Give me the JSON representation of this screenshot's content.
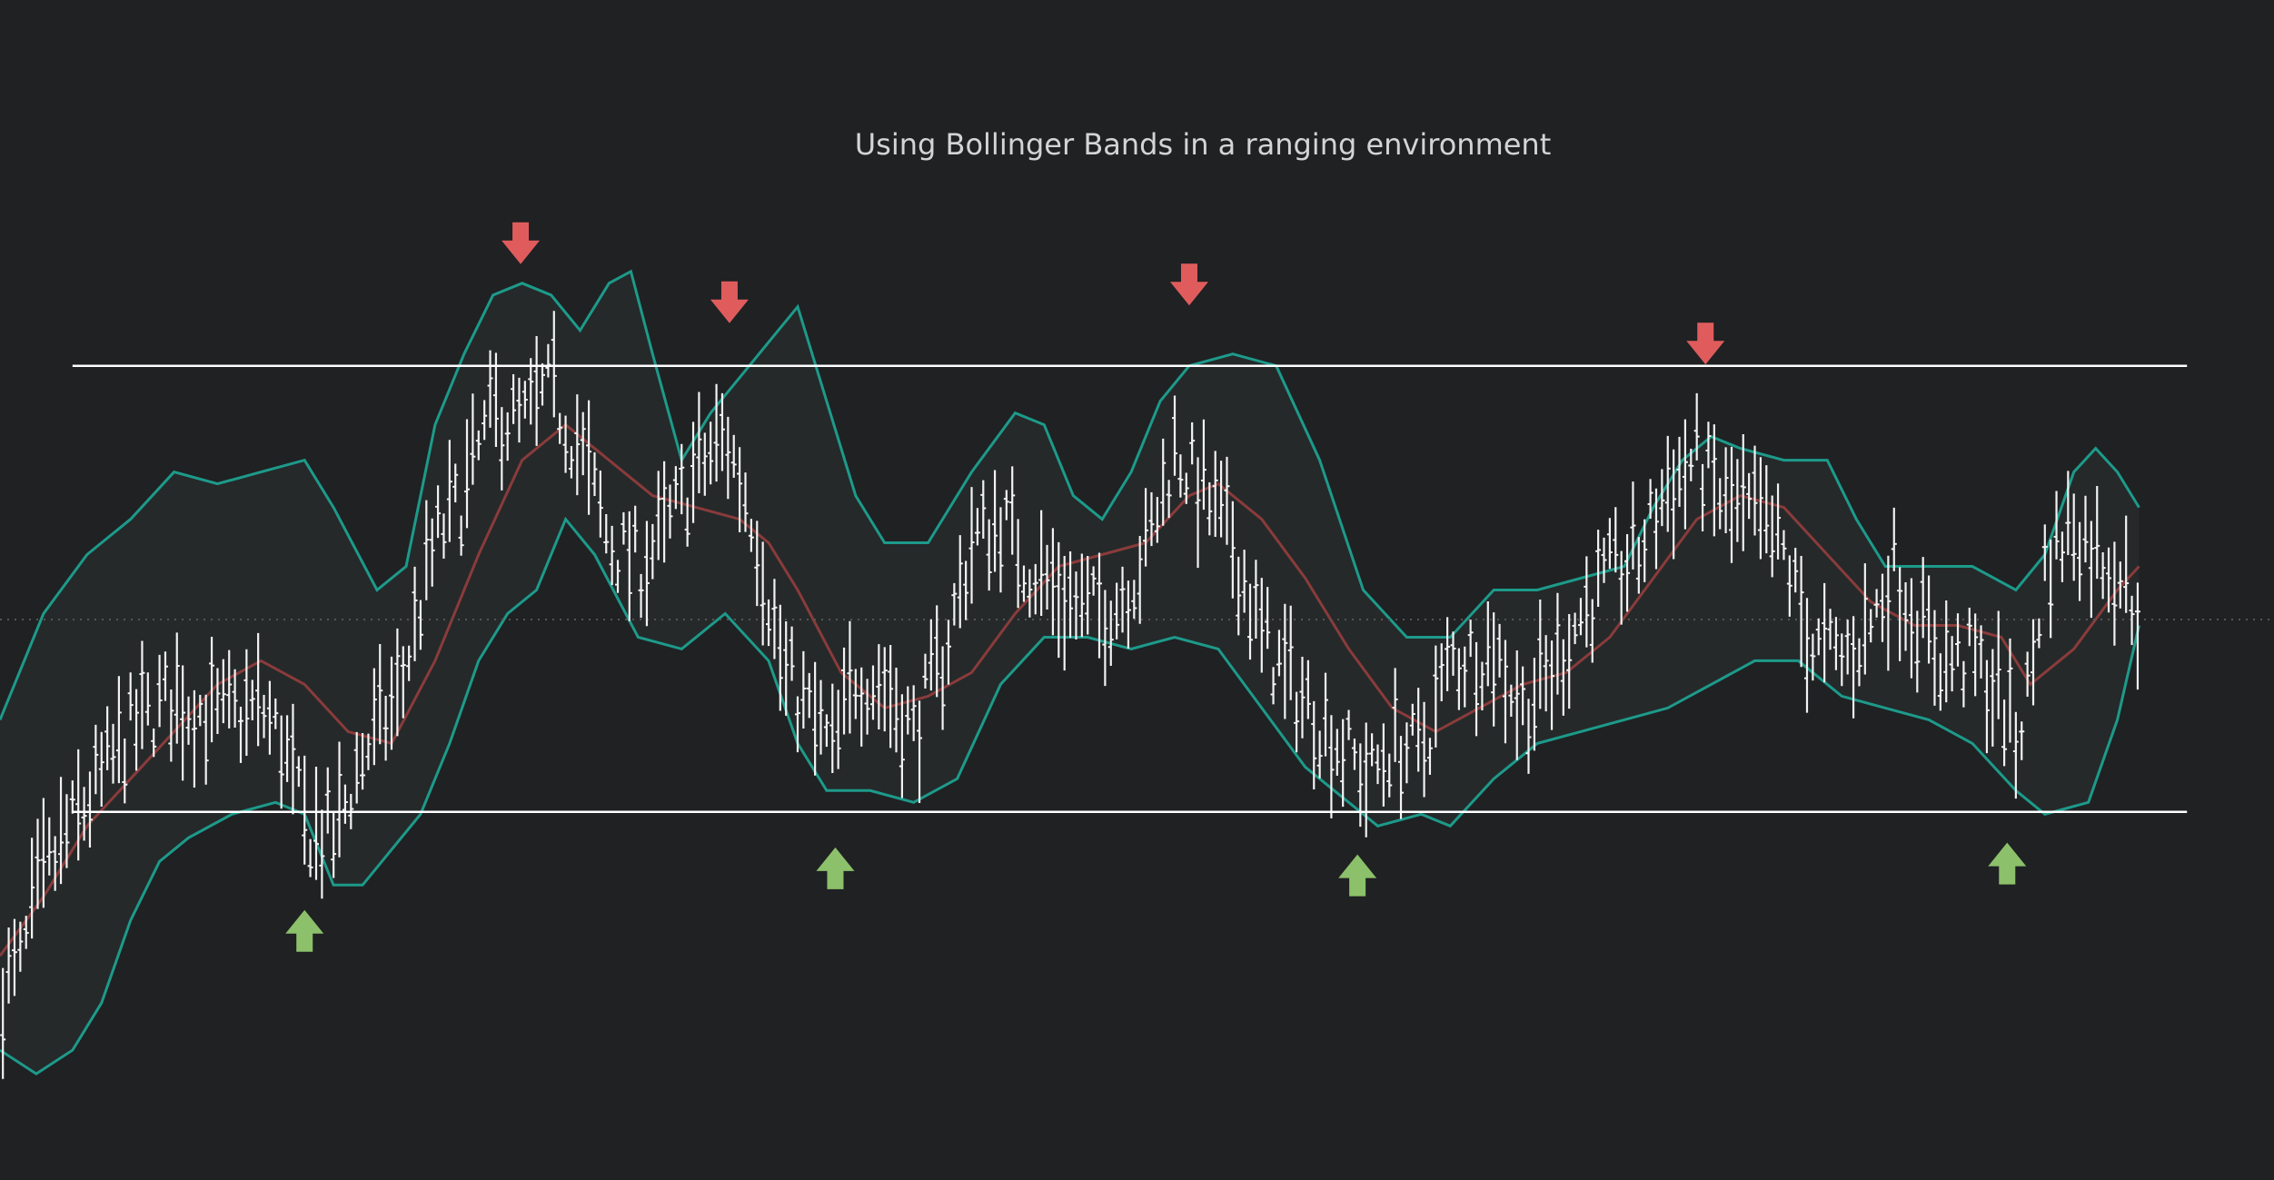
{
  "chart_data": {
    "type": "bar",
    "title": "Using Bollinger Bands in a ranging environment",
    "xlabel": "",
    "ylabel": "",
    "grid": false,
    "legend": "none",
    "xlim": [
      0,
      1568
    ],
    "ylim": [
      0,
      1000
    ],
    "range_levels": {
      "resistance": 690,
      "support": 312,
      "reference": 475
    },
    "range_span": [
      50,
      1508
    ],
    "price_path": [
      [
        0,
        160
      ],
      [
        15,
        180
      ],
      [
        25,
        240
      ],
      [
        45,
        290
      ],
      [
        60,
        320
      ],
      [
        90,
        380
      ],
      [
        120,
        410
      ],
      [
        150,
        390
      ],
      [
        180,
        400
      ],
      [
        195,
        370
      ],
      [
        210,
        300
      ],
      [
        230,
        290
      ],
      [
        250,
        360
      ],
      [
        275,
        410
      ],
      [
        300,
        540
      ],
      [
        320,
        580
      ],
      [
        340,
        650
      ],
      [
        360,
        640
      ],
      [
        380,
        670
      ],
      [
        400,
        620
      ],
      [
        420,
        540
      ],
      [
        440,
        520
      ],
      [
        460,
        550
      ],
      [
        480,
        600
      ],
      [
        500,
        630
      ],
      [
        520,
        560
      ],
      [
        540,
        430
      ],
      [
        560,
        390
      ],
      [
        575,
        360
      ],
      [
        590,
        430
      ],
      [
        610,
        420
      ],
      [
        630,
        380
      ],
      [
        650,
        440
      ],
      [
        670,
        540
      ],
      [
        690,
        560
      ],
      [
        710,
        520
      ],
      [
        730,
        500
      ],
      [
        750,
        480
      ],
      [
        770,
        490
      ],
      [
        790,
        530
      ],
      [
        810,
        620
      ],
      [
        830,
        580
      ],
      [
        850,
        540
      ],
      [
        870,
        460
      ],
      [
        890,
        420
      ],
      [
        910,
        390
      ],
      [
        930,
        360
      ],
      [
        945,
        340
      ],
      [
        960,
        370
      ],
      [
        980,
        360
      ],
      [
        1000,
        440
      ],
      [
        1030,
        450
      ],
      [
        1050,
        400
      ],
      [
        1070,
        430
      ],
      [
        1090,
        480
      ],
      [
        1110,
        510
      ],
      [
        1130,
        530
      ],
      [
        1150,
        590
      ],
      [
        1170,
        610
      ],
      [
        1190,
        570
      ],
      [
        1210,
        560
      ],
      [
        1230,
        530
      ],
      [
        1250,
        450
      ],
      [
        1270,
        440
      ],
      [
        1290,
        470
      ],
      [
        1305,
        520
      ],
      [
        1320,
        480
      ],
      [
        1340,
        440
      ],
      [
        1360,
        440
      ],
      [
        1380,
        410
      ],
      [
        1390,
        370
      ],
      [
        1400,
        420
      ],
      [
        1410,
        520
      ],
      [
        1430,
        560
      ],
      [
        1440,
        540
      ],
      [
        1460,
        520
      ],
      [
        1475,
        480
      ]
    ],
    "middle_band": [
      [
        0,
        190
      ],
      [
        30,
        240
      ],
      [
        60,
        300
      ],
      [
        90,
        340
      ],
      [
        120,
        380
      ],
      [
        150,
        420
      ],
      [
        180,
        440
      ],
      [
        210,
        420
      ],
      [
        240,
        380
      ],
      [
        270,
        370
      ],
      [
        300,
        440
      ],
      [
        330,
        530
      ],
      [
        360,
        610
      ],
      [
        390,
        640
      ],
      [
        420,
        610
      ],
      [
        450,
        580
      ],
      [
        480,
        570
      ],
      [
        510,
        560
      ],
      [
        530,
        540
      ],
      [
        550,
        500
      ],
      [
        580,
        430
      ],
      [
        610,
        400
      ],
      [
        640,
        410
      ],
      [
        670,
        430
      ],
      [
        700,
        480
      ],
      [
        730,
        520
      ],
      [
        760,
        530
      ],
      [
        790,
        540
      ],
      [
        820,
        580
      ],
      [
        840,
        590
      ],
      [
        870,
        560
      ],
      [
        900,
        510
      ],
      [
        930,
        450
      ],
      [
        960,
        400
      ],
      [
        990,
        380
      ],
      [
        1020,
        400
      ],
      [
        1050,
        420
      ],
      [
        1080,
        430
      ],
      [
        1110,
        460
      ],
      [
        1140,
        510
      ],
      [
        1170,
        560
      ],
      [
        1200,
        580
      ],
      [
        1230,
        570
      ],
      [
        1260,
        530
      ],
      [
        1290,
        490
      ],
      [
        1320,
        470
      ],
      [
        1350,
        470
      ],
      [
        1380,
        460
      ],
      [
        1400,
        420
      ],
      [
        1430,
        450
      ],
      [
        1460,
        500
      ],
      [
        1475,
        520
      ]
    ],
    "upper_band": [
      [
        0,
        390
      ],
      [
        30,
        480
      ],
      [
        60,
        530
      ],
      [
        90,
        560
      ],
      [
        120,
        600
      ],
      [
        150,
        590
      ],
      [
        180,
        600
      ],
      [
        210,
        610
      ],
      [
        230,
        570
      ],
      [
        260,
        500
      ],
      [
        280,
        520
      ],
      [
        300,
        640
      ],
      [
        320,
        700
      ],
      [
        340,
        750
      ],
      [
        360,
        760
      ],
      [
        380,
        750
      ],
      [
        400,
        720
      ],
      [
        420,
        760
      ],
      [
        435,
        770
      ],
      [
        450,
        700
      ],
      [
        470,
        610
      ],
      [
        490,
        650
      ],
      [
        510,
        680
      ],
      [
        530,
        710
      ],
      [
        550,
        740
      ],
      [
        570,
        660
      ],
      [
        590,
        580
      ],
      [
        610,
        540
      ],
      [
        640,
        540
      ],
      [
        670,
        600
      ],
      [
        700,
        650
      ],
      [
        720,
        640
      ],
      [
        740,
        580
      ],
      [
        760,
        560
      ],
      [
        780,
        600
      ],
      [
        800,
        660
      ],
      [
        820,
        690
      ],
      [
        850,
        700
      ],
      [
        880,
        690
      ],
      [
        910,
        610
      ],
      [
        940,
        500
      ],
      [
        970,
        460
      ],
      [
        1000,
        460
      ],
      [
        1030,
        500
      ],
      [
        1060,
        500
      ],
      [
        1090,
        510
      ],
      [
        1120,
        520
      ],
      [
        1140,
        570
      ],
      [
        1160,
        610
      ],
      [
        1180,
        630
      ],
      [
        1200,
        620
      ],
      [
        1230,
        610
      ],
      [
        1260,
        610
      ],
      [
        1280,
        560
      ],
      [
        1300,
        520
      ],
      [
        1330,
        520
      ],
      [
        1360,
        520
      ],
      [
        1390,
        500
      ],
      [
        1410,
        530
      ],
      [
        1430,
        600
      ],
      [
        1445,
        620
      ],
      [
        1460,
        600
      ],
      [
        1475,
        570
      ]
    ],
    "lower_band": [
      [
        0,
        110
      ],
      [
        25,
        90
      ],
      [
        50,
        110
      ],
      [
        70,
        150
      ],
      [
        90,
        220
      ],
      [
        110,
        270
      ],
      [
        130,
        290
      ],
      [
        160,
        310
      ],
      [
        190,
        320
      ],
      [
        210,
        310
      ],
      [
        230,
        250
      ],
      [
        250,
        250
      ],
      [
        270,
        280
      ],
      [
        290,
        310
      ],
      [
        310,
        370
      ],
      [
        330,
        440
      ],
      [
        350,
        480
      ],
      [
        370,
        500
      ],
      [
        390,
        560
      ],
      [
        410,
        530
      ],
      [
        440,
        460
      ],
      [
        470,
        450
      ],
      [
        500,
        480
      ],
      [
        530,
        440
      ],
      [
        550,
        370
      ],
      [
        570,
        330
      ],
      [
        600,
        330
      ],
      [
        630,
        320
      ],
      [
        660,
        340
      ],
      [
        690,
        420
      ],
      [
        720,
        460
      ],
      [
        750,
        460
      ],
      [
        780,
        450
      ],
      [
        810,
        460
      ],
      [
        840,
        450
      ],
      [
        870,
        400
      ],
      [
        900,
        350
      ],
      [
        930,
        320
      ],
      [
        950,
        300
      ],
      [
        980,
        310
      ],
      [
        1000,
        300
      ],
      [
        1030,
        340
      ],
      [
        1060,
        370
      ],
      [
        1090,
        380
      ],
      [
        1120,
        390
      ],
      [
        1150,
        400
      ],
      [
        1180,
        420
      ],
      [
        1210,
        440
      ],
      [
        1240,
        440
      ],
      [
        1270,
        410
      ],
      [
        1300,
        400
      ],
      [
        1330,
        390
      ],
      [
        1360,
        370
      ],
      [
        1390,
        330
      ],
      [
        1410,
        310
      ],
      [
        1440,
        320
      ],
      [
        1460,
        390
      ],
      [
        1475,
        470
      ]
    ],
    "signals": [
      {
        "type": "sell",
        "x": 359,
        "y": 790
      },
      {
        "type": "sell",
        "x": 503,
        "y": 740
      },
      {
        "type": "sell",
        "x": 820,
        "y": 755
      },
      {
        "type": "sell",
        "x": 1176,
        "y": 705
      },
      {
        "type": "buy",
        "x": 210,
        "y": 215
      },
      {
        "type": "buy",
        "x": 576,
        "y": 268
      },
      {
        "type": "buy",
        "x": 936,
        "y": 262
      },
      {
        "type": "buy",
        "x": 1384,
        "y": 272
      }
    ],
    "colors": {
      "background": "#1f2123",
      "price_bars": "#f2f2f2",
      "bands": "#1d9a8a",
      "band_fill": "#2a3131",
      "middle_band": "#8a3b3b",
      "range_lines": "#ffffff",
      "reference_line": "#555555",
      "sell_arrow": "#e05c5c",
      "buy_arrow": "#8cc06a",
      "title": "#d4d4d4"
    }
  }
}
